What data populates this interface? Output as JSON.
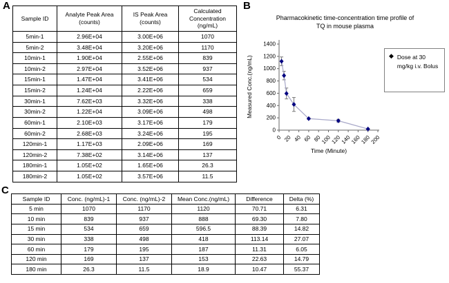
{
  "panel_a": {
    "label": "A",
    "table": {
      "headers": [
        "Sample ID",
        "Analyte Peak Area (counts)",
        "IS Peak Area (counts)",
        "Calculated Concentration (ng/mL)"
      ],
      "rows": [
        [
          "5min-1",
          "2.96E+04",
          "3.00E+06",
          "1070"
        ],
        [
          "5min-2",
          "3.48E+04",
          "3.20E+06",
          "1170"
        ],
        [
          "10min-1",
          "1.90E+04",
          "2.55E+06",
          "839"
        ],
        [
          "10min-2",
          "2.97E+04",
          "3.52E+06",
          "937"
        ],
        [
          "15min-1",
          "1.47E+04",
          "3.41E+06",
          "534"
        ],
        [
          "15min-2",
          "1.24E+04",
          "2.22E+06",
          "659"
        ],
        [
          "30min-1",
          "7.62E+03",
          "3.32E+06",
          "338"
        ],
        [
          "30min-2",
          "1.22E+04",
          "3.09E+06",
          "498"
        ],
        [
          "60min-1",
          "2.10E+03",
          "3.17E+06",
          "179"
        ],
        [
          "60min-2",
          "2.68E+03",
          "3.24E+06",
          "195"
        ],
        [
          "120min-1",
          "1.17E+03",
          "2.09E+06",
          "169"
        ],
        [
          "120min-2",
          "7.38E+02",
          "3.14E+06",
          "137"
        ],
        [
          "180min-1",
          "1.05E+02",
          "1.65E+06",
          "26.3"
        ],
        [
          "180min-2",
          "1.05E+02",
          "3.57E+06",
          "11.5"
        ]
      ]
    }
  },
  "panel_b": {
    "label": "B"
  },
  "chart_data": {
    "type": "line",
    "title": "Pharmacokinetic time-concentration time profile of TQ in mouse plasma",
    "xlabel": "Time (Minute)",
    "ylabel": "Measured Conc.(ng/mL)",
    "x": [
      5,
      10,
      15,
      30,
      60,
      120,
      180
    ],
    "series": [
      {
        "name": "Dose at 30 mg/kg i.v. Bolus",
        "values": [
          1120,
          888,
          596.5,
          418,
          187,
          153,
          18.9
        ]
      }
    ],
    "error": [
      70.71,
      69.3,
      88.39,
      113.14,
      11.31,
      22.63,
      10.47
    ],
    "xlim": [
      0,
      200
    ],
    "ylim": [
      0,
      1400
    ],
    "x_ticks": [
      0,
      20,
      40,
      60,
      80,
      100,
      120,
      140,
      160,
      180,
      200
    ],
    "y_ticks": [
      0,
      200,
      400,
      600,
      800,
      1000,
      1200,
      1400
    ],
    "grid": false,
    "legend_position": "right",
    "marker": "diamond",
    "line_color": "#a9a9c9",
    "marker_color": "#000080",
    "error_color": "#777777",
    "axis_color": "#666666"
  },
  "panel_c": {
    "label": "C",
    "table": {
      "headers": [
        "Sample ID",
        "Conc. (ng/mL)-1",
        "Conc. (ng/mL)-2",
        "Mean Conc.(ng/mL)",
        "Difference",
        "Delta (%)"
      ],
      "rows": [
        [
          "5 min",
          "1070",
          "1170",
          "1120",
          "70.71",
          "6.31"
        ],
        [
          "10 min",
          "839",
          "937",
          "888",
          "69.30",
          "7.80"
        ],
        [
          "15 min",
          "534",
          "659",
          "596.5",
          "88.39",
          "14.82"
        ],
        [
          "30 min",
          "338",
          "498",
          "418",
          "113.14",
          "27.07"
        ],
        [
          "60 min",
          "179",
          "195",
          "187",
          "11.31",
          "6.05"
        ],
        [
          "120 min",
          "169",
          "137",
          "153",
          "22.63",
          "14.79"
        ],
        [
          "180 min",
          "26.3",
          "11.5",
          "18.9",
          "10.47",
          "55.37"
        ]
      ]
    }
  }
}
